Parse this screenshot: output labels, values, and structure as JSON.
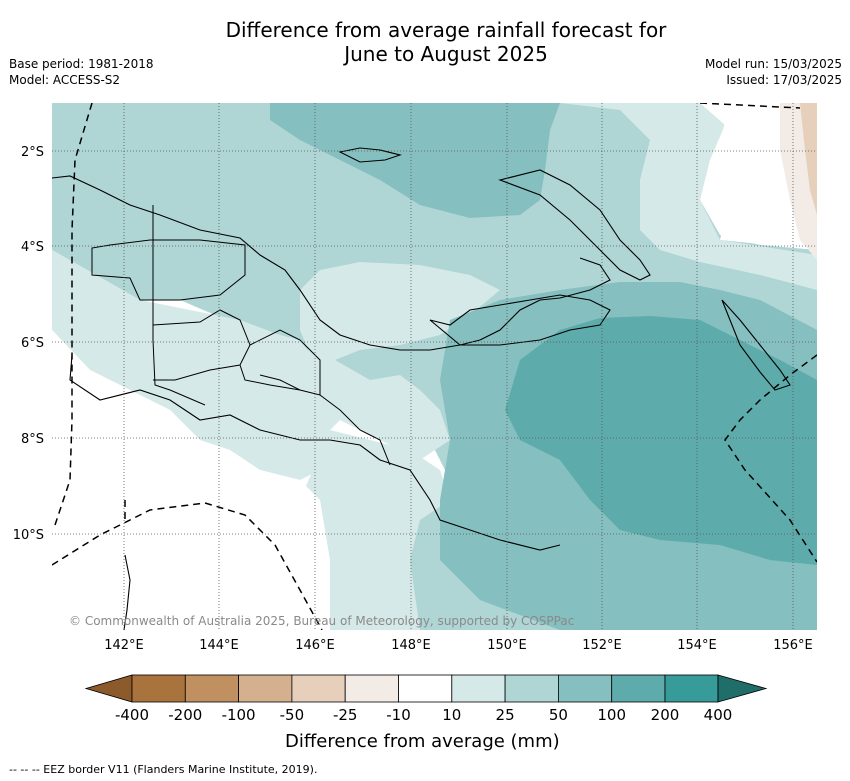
{
  "title_line1": "Difference from average rainfall forecast for",
  "title_line2": "June to August 2025",
  "base_period": "Base period: 1981-2018",
  "model": "Model: ACCESS-S2",
  "model_run": "Model run: 15/03/2025",
  "issued": "Issued: 17/03/2025",
  "copyright": "© Commonwealth of Australia 2025, Bureau of Meteorology, supported by COSPPac",
  "map": {
    "lon_labels": [
      "142°E",
      "144°E",
      "146°E",
      "148°E",
      "150°E",
      "152°E",
      "154°E",
      "156°E"
    ],
    "lat_labels": [
      "2°S",
      "4°S",
      "6°S",
      "8°S",
      "10°S"
    ],
    "lon_range": [
      141.0,
      156.5
    ],
    "lat_range": [
      -12.0,
      -1.0
    ]
  },
  "colorbar": {
    "title": "Difference from average (mm)",
    "labels": [
      "-400",
      "-200",
      "-100",
      "-50",
      "-25",
      "-10",
      "10",
      "25",
      "50",
      "100",
      "200",
      "400"
    ],
    "colors": {
      "below_-400": "#8c5a2b",
      "-400_-200": "#a9733d",
      "-200_-100": "#c19061",
      "-100_-50": "#d4b08e",
      "-50_-25": "#e6cfbb",
      "-25_-10": "#f2ebe6",
      "-10_10": "#ffffff",
      "10_25": "#d5e9e8",
      "25_50": "#afd5d5",
      "50_100": "#85bfbf",
      "100_200": "#5eabab",
      "200_400": "#369b99",
      "above_400": "#1f6e6a"
    }
  },
  "eez_note": "--  --  -- EEZ border V11 (Flanders Marine Institute, 2019)."
}
